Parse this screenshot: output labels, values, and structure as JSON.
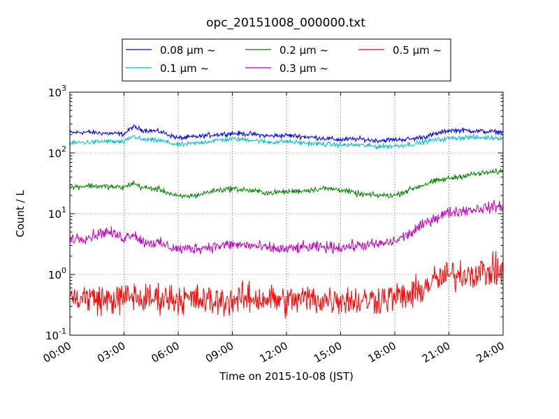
{
  "chart_data": {
    "type": "line",
    "title": "opc_20151008_000000.txt",
    "xlabel": "Time on 2015-10-08 (JST)",
    "ylabel": "Count / L",
    "y_scale": "log",
    "ylim": [
      0.1,
      1000
    ],
    "xlim": [
      "00:00",
      "24:00"
    ],
    "x_ticks": [
      "00:00",
      "03:00",
      "06:00",
      "09:00",
      "12:00",
      "15:00",
      "18:00",
      "21:00",
      "24:00"
    ],
    "y_ticks": [
      {
        "value": 0.1,
        "base": "10",
        "exp": "-1"
      },
      {
        "value": 1,
        "base": "10",
        "exp": "0"
      },
      {
        "value": 10,
        "base": "10",
        "exp": "1"
      },
      {
        "value": 100,
        "base": "10",
        "exp": "2"
      },
      {
        "value": 1000,
        "base": "10",
        "exp": "3"
      }
    ],
    "grid": true,
    "legend_position": "top-center, above plot",
    "x": [
      "00:00",
      "01:00",
      "02:00",
      "03:00",
      "03:30",
      "04:00",
      "05:00",
      "06:00",
      "07:00",
      "08:00",
      "09:00",
      "10:00",
      "11:00",
      "12:00",
      "13:00",
      "14:00",
      "15:00",
      "16:00",
      "17:00",
      "18:00",
      "19:00",
      "20:00",
      "21:00",
      "22:00",
      "23:00",
      "24:00"
    ],
    "series": [
      {
        "name": "0.08 μm ~",
        "color": "#0000ff",
        "noise": 0.035,
        "values": [
          215,
          220,
          210,
          205,
          270,
          240,
          225,
          175,
          185,
          200,
          210,
          205,
          190,
          195,
          185,
          175,
          165,
          170,
          160,
          165,
          170,
          195,
          235,
          235,
          225,
          220
        ]
      },
      {
        "name": "0.1 μm ~",
        "color": "#00bfbf",
        "noise": 0.035,
        "values": [
          145,
          150,
          155,
          150,
          190,
          165,
          160,
          135,
          145,
          160,
          170,
          165,
          150,
          155,
          145,
          140,
          135,
          135,
          128,
          130,
          140,
          160,
          175,
          180,
          178,
          178
        ]
      },
      {
        "name": "0.2 μm ~",
        "color": "#008000",
        "noise": 0.04,
        "values": [
          27,
          29,
          28,
          27,
          32,
          27,
          25,
          19,
          20,
          24,
          26,
          24,
          22,
          23,
          24,
          26,
          25,
          21,
          20,
          20,
          26,
          33,
          38,
          43,
          47,
          50
        ]
      },
      {
        "name": "0.3 μm ~",
        "color": "#bf00bf",
        "noise": 0.08,
        "values": [
          3.9,
          4.1,
          5.1,
          4.0,
          4.8,
          3.5,
          3.2,
          2.6,
          2.7,
          2.9,
          3.1,
          3.0,
          2.7,
          2.6,
          2.8,
          2.8,
          2.8,
          3.0,
          3.1,
          3.5,
          5.0,
          8.0,
          10.5,
          11.5,
          12.5,
          13.5
        ]
      },
      {
        "name": "0.5 μm ~",
        "color": "#ff0000",
        "noise": 0.22,
        "values": [
          0.4,
          0.42,
          0.38,
          0.4,
          0.45,
          0.38,
          0.42,
          0.4,
          0.38,
          0.36,
          0.38,
          0.4,
          0.4,
          0.36,
          0.4,
          0.38,
          0.4,
          0.36,
          0.4,
          0.42,
          0.45,
          0.75,
          0.95,
          1.05,
          1.1,
          1.15
        ]
      }
    ]
  }
}
